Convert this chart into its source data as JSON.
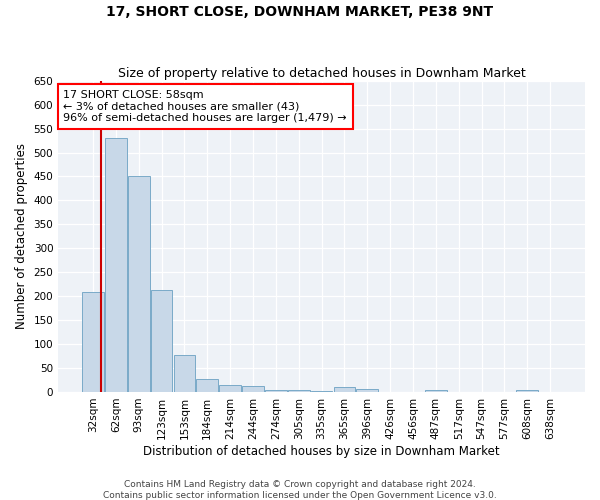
{
  "title": "17, SHORT CLOSE, DOWNHAM MARKET, PE38 9NT",
  "subtitle": "Size of property relative to detached houses in Downham Market",
  "xlabel": "Distribution of detached houses by size in Downham Market",
  "ylabel": "Number of detached properties",
  "footer_line1": "Contains HM Land Registry data © Crown copyright and database right 2024.",
  "footer_line2": "Contains public sector information licensed under the Open Government Licence v3.0.",
  "annotation_line1": "17 SHORT CLOSE: 58sqm",
  "annotation_line2": "← 3% of detached houses are smaller (43)",
  "annotation_line3": "96% of semi-detached houses are larger (1,479) →",
  "bar_color": "#c8d8e8",
  "bar_edge_color": "#7aaac8",
  "marker_color": "#cc0000",
  "categories": [
    "32sqm",
    "62sqm",
    "93sqm",
    "123sqm",
    "153sqm",
    "184sqm",
    "214sqm",
    "244sqm",
    "274sqm",
    "305sqm",
    "335sqm",
    "365sqm",
    "396sqm",
    "426sqm",
    "456sqm",
    "487sqm",
    "517sqm",
    "547sqm",
    "577sqm",
    "608sqm",
    "638sqm"
  ],
  "values": [
    208,
    530,
    450,
    212,
    77,
    27,
    15,
    12,
    5,
    5,
    3,
    10,
    7,
    0,
    0,
    5,
    0,
    0,
    0,
    5,
    0
  ],
  "ylim": [
    0,
    650
  ],
  "yticks": [
    0,
    50,
    100,
    150,
    200,
    250,
    300,
    350,
    400,
    450,
    500,
    550,
    600,
    650
  ],
  "title_fontsize": 10,
  "subtitle_fontsize": 9,
  "axis_label_fontsize": 8.5,
  "tick_fontsize": 7.5,
  "annotation_fontsize": 8,
  "footer_fontsize": 6.5
}
